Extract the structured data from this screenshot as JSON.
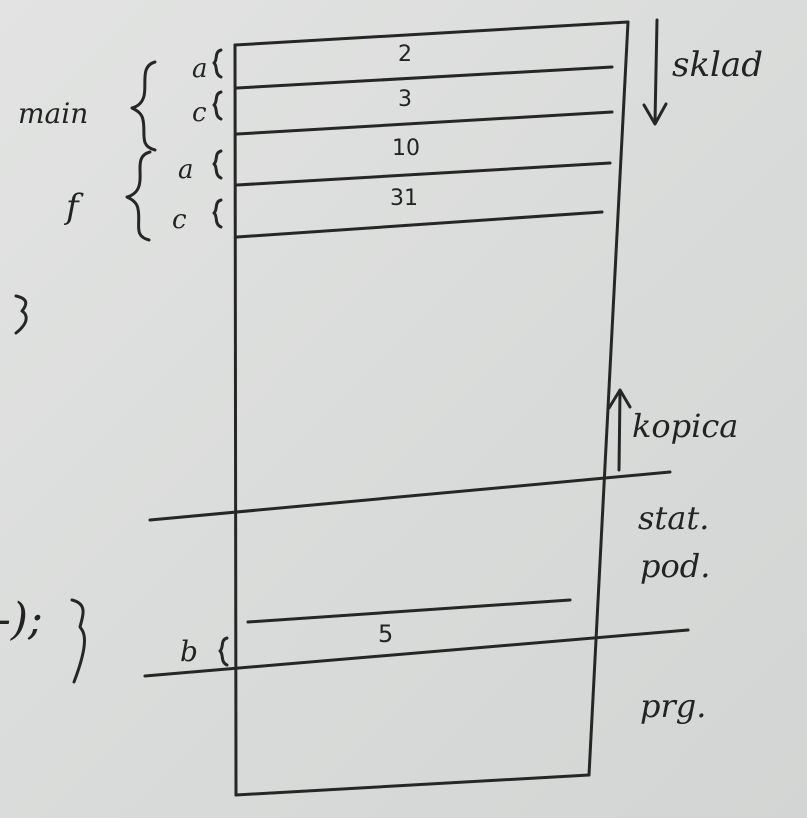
{
  "stack": {
    "title": "sklad",
    "cells": [
      "2",
      "3",
      "10",
      "31"
    ],
    "frames": [
      {
        "name": "main",
        "vars": [
          "a",
          "c"
        ]
      },
      {
        "name": "f",
        "vars": [
          "a",
          "c"
        ]
      }
    ],
    "closing_brace": "}"
  },
  "heap": {
    "label": "kopica"
  },
  "static": {
    "label_line1": "stat.",
    "label_line2": "pod.",
    "var": "b",
    "value": "5",
    "code_fragment": "-);",
    "code_brace": "}"
  },
  "program": {
    "label": "prg."
  }
}
